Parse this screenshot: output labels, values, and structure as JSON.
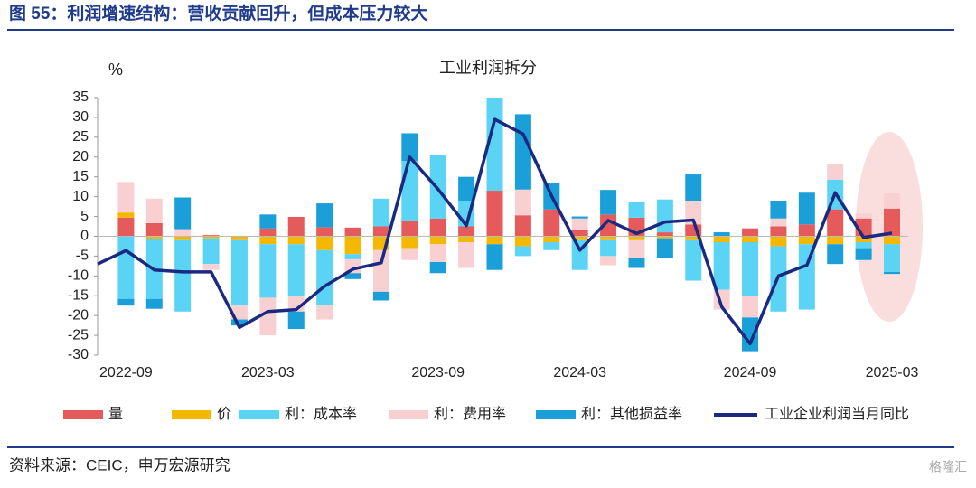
{
  "header": {
    "title": "图 55：利润增速结构：营收贡献回升，但成本压力较大"
  },
  "chart_data": {
    "type": "bar",
    "title": "工业利润拆分",
    "y_label": "%",
    "categories": [
      null,
      "2022-09",
      null,
      null,
      null,
      null,
      "2023-03",
      null,
      null,
      null,
      null,
      null,
      "2023-09",
      null,
      null,
      null,
      null,
      "2024-03",
      null,
      null,
      null,
      null,
      null,
      "2024-09",
      null,
      null,
      null,
      null,
      "2025-03"
    ],
    "ylim": [
      -30,
      35
    ],
    "yticks": [
      35,
      30,
      25,
      20,
      15,
      10,
      5,
      0,
      -5,
      -10,
      -15,
      -20,
      -25,
      -30
    ],
    "series": [
      {
        "name": "量",
        "color": "#e55a5a",
        "values": [
          null,
          4.7,
          3.3,
          null,
          0.3,
          null,
          2,
          4.9,
          2.3,
          2.2,
          2.5,
          4,
          4.5,
          2.5,
          11.5,
          5.3,
          6.8,
          1.5,
          5.5,
          4.7,
          1,
          3,
          null,
          2,
          2.5,
          3,
          6.8,
          4.5,
          7
        ]
      },
      {
        "name": "价",
        "color": "#f5b800",
        "values": [
          null,
          1.3,
          -0.8,
          -1,
          -0.5,
          -1,
          -2,
          -2,
          -3.5,
          -4.5,
          -3.5,
          -3,
          -2,
          -1.5,
          -2,
          -2.5,
          -1.5,
          -1,
          -1,
          -1,
          -0.5,
          -1,
          -1.5,
          -1.5,
          -2.5,
          -2,
          -2,
          -1.5,
          -2
        ]
      },
      {
        "name": "利：成本率",
        "color": "#5bd3f5",
        "values": [
          null,
          -15.8,
          -15,
          -18,
          -6.5,
          -16.5,
          -13.5,
          -13,
          -14,
          -1.3,
          7,
          15,
          16,
          6.5,
          23.5,
          -2.5,
          -2,
          -7.5,
          -4,
          4,
          8.3,
          -10.2,
          -12,
          -13.5,
          -16.5,
          -16.5,
          7.5,
          -1.5,
          -7
        ]
      },
      {
        "name": "利：费用率",
        "color": "#f8d0d2",
        "values": [
          null,
          7.7,
          6.2,
          1.8,
          -1.5,
          -3.5,
          -9.5,
          -4,
          -3.5,
          -3.5,
          -10.5,
          -3,
          -4.5,
          -6.5,
          null,
          6.5,
          null,
          3,
          -2.3,
          -4.5,
          null,
          6,
          -5,
          -5.5,
          2,
          null,
          3.9,
          1.2,
          3.8
        ]
      },
      {
        "name": "利：其他损益率",
        "color": "#1a9fd8",
        "values": [
          null,
          -1.7,
          -2.5,
          8,
          null,
          -1.5,
          3.5,
          -4.4,
          6,
          -1.5,
          -2.2,
          7,
          -2.8,
          6,
          -6.5,
          19,
          6.7,
          0.5,
          6.2,
          -2.5,
          -5,
          6.6,
          1,
          -8.5,
          4.5,
          8,
          -5,
          -3,
          -0.5
        ]
      },
      {
        "name": "工业企业利润当月同比",
        "type": "line",
        "color": "#1a2a80",
        "values": [
          -7,
          -3.6,
          -8.5,
          -9,
          -9,
          -23,
          -19,
          -18.5,
          -12.6,
          -8.3,
          -6.7,
          20,
          11.9,
          2.7,
          29.5,
          25.8,
          10.2,
          -3.5,
          4,
          0.7,
          3.6,
          4.1,
          -17.8,
          -27.1,
          -10,
          -7.3,
          11,
          -0.3,
          0.8
        ]
      }
    ]
  },
  "source": "资料来源：CEIC，申万宏源研究",
  "watermark": "格隆汇"
}
